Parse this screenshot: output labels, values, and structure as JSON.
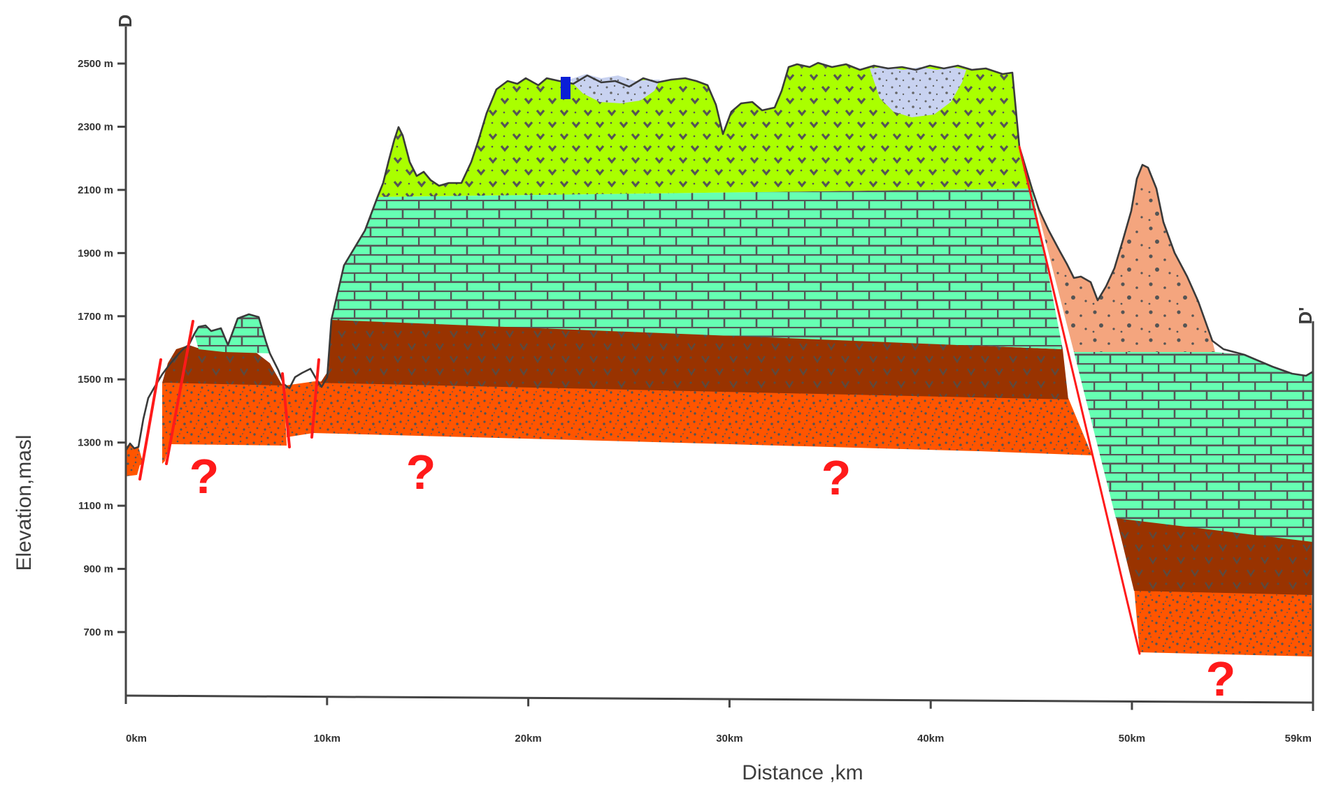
{
  "section_labels": {
    "start": "D",
    "end": "D'"
  },
  "y_axis": {
    "title": "Elevation,masl",
    "unit": "m",
    "ticks": [
      700,
      900,
      1100,
      1300,
      1500,
      1700,
      1900,
      2100,
      2300,
      2500
    ],
    "tick_labels": [
      "700 m",
      "900 m",
      "1100 m",
      "1300 m",
      "1500 m",
      "1700 m",
      "1900 m",
      "2100 m",
      "2300 m",
      "2500 m"
    ]
  },
  "x_axis": {
    "title": "Distance ,km",
    "ticks": [
      0,
      10,
      20,
      30,
      40,
      50,
      59
    ],
    "tick_labels": [
      "0km",
      "10km",
      "20km",
      "30km",
      "40km",
      "50km",
      "59km"
    ]
  },
  "unknown_markers": [
    "?",
    "?",
    "?",
    "?"
  ],
  "colors": {
    "volcanic_green": "#aaff00",
    "limestone_teal": "#66ffb3",
    "brown_volcanic": "#993300",
    "orange_conglomerate": "#ff5500",
    "salmon_intrusion": "#f4a57e",
    "lake_lavender": "#c8d2f0",
    "fault_red": "#ff1a1a",
    "marker_blue": "#0a1fd6",
    "axis_grey": "#444444"
  },
  "chart_data": {
    "type": "cross-section",
    "xlabel": "Distance ,km",
    "ylabel": "Elevation,masl",
    "xlim": [
      0,
      59
    ],
    "ylim": [
      500,
      2700
    ]
  }
}
